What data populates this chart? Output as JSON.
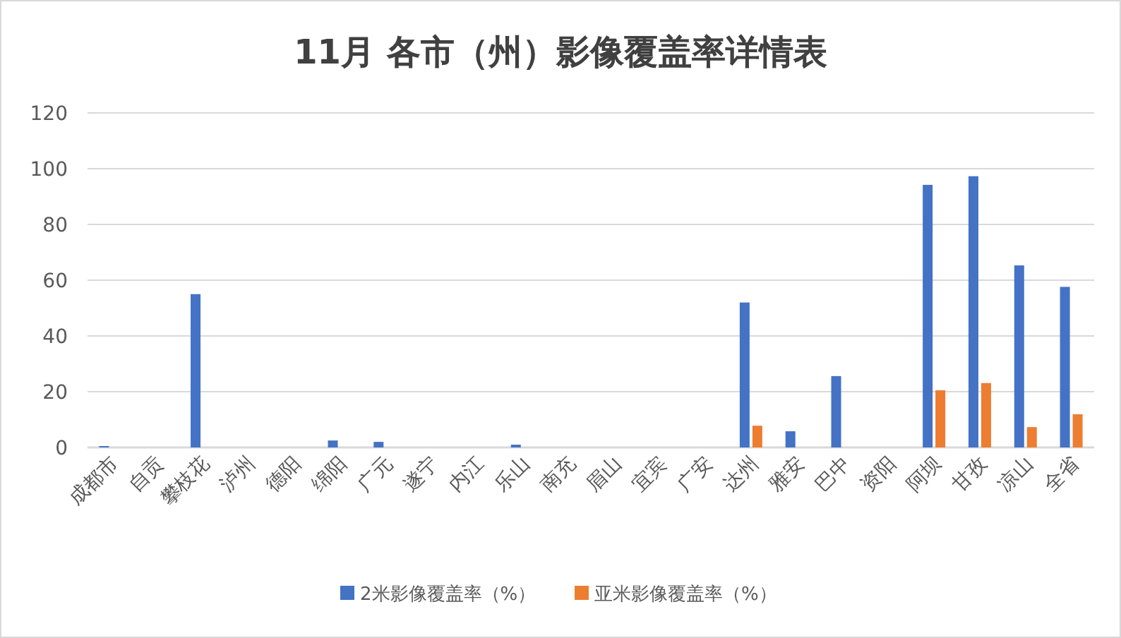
{
  "chart_data": {
    "type": "bar",
    "title": "11月 各市（州）影像覆盖率详情表",
    "categories": [
      "成都市",
      "自贡",
      "攀枝花",
      "泸州",
      "德阳",
      "绵阳",
      "广元",
      "遂宁",
      "内江",
      "乐山",
      "南充",
      "眉山",
      "宜宾",
      "广安",
      "达州",
      "雅安",
      "巴中",
      "资阳",
      "阿坝",
      "甘孜",
      "凉山",
      "全省"
    ],
    "series": [
      {
        "name": "2米影像覆盖率（%）",
        "color": "#4472c4",
        "values": [
          0.5,
          0,
          55,
          0,
          0,
          2.5,
          2,
          0,
          0,
          1,
          0,
          0,
          0,
          0,
          52,
          5.8,
          25.6,
          0,
          94.2,
          97.3,
          65.3,
          57.6
        ]
      },
      {
        "name": "亚米影像覆盖率（%）",
        "color": "#ed7d31",
        "values": [
          0,
          0,
          0,
          0,
          0,
          0,
          0,
          0,
          0,
          0,
          0,
          0,
          0,
          0,
          7.8,
          0,
          0,
          0,
          20.5,
          23.1,
          7.3,
          11.9
        ]
      }
    ],
    "ylim": [
      0,
      120
    ],
    "yticks": [
      0,
      20,
      40,
      60,
      80,
      100,
      120
    ],
    "grid": "y",
    "legend": "bottom"
  }
}
